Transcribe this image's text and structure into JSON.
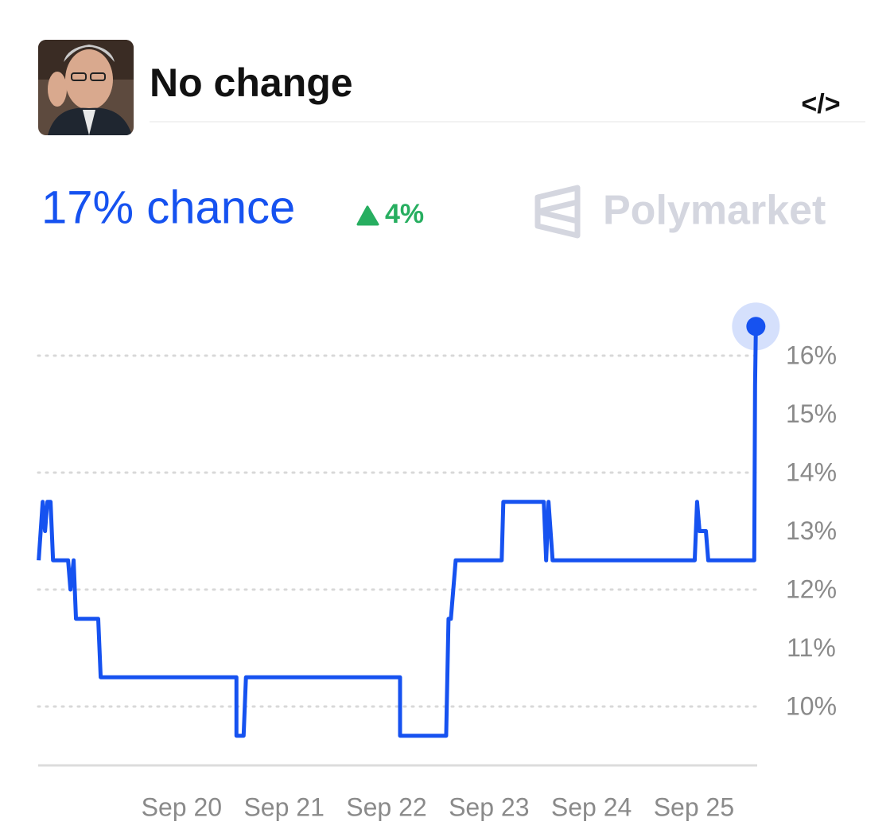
{
  "header": {
    "title": "No change",
    "embed": "</>",
    "chance": "17% chance",
    "change": "4%",
    "brand": "Polymarket"
  },
  "chart_data": {
    "type": "line",
    "x": [
      18.605,
      18.644,
      18.667,
      18.69,
      18.721,
      18.745,
      18.892,
      18.915,
      18.946,
      18.969,
      19.186,
      19.21,
      20.535,
      20.535,
      20.605,
      20.628,
      22.132,
      22.132,
      22.582,
      22.605,
      22.628,
      22.675,
      23.124,
      23.14,
      23.535,
      23.558,
      23.581,
      23.621,
      25.008,
      25.031,
      25.055,
      25.117,
      25.14,
      25.589,
      25.597,
      25.605
    ],
    "series": [
      {
        "color": "#1652f0",
        "values": [
          12.5,
          13.5,
          13,
          13.5,
          13.5,
          12.5,
          12.5,
          12,
          12.5,
          11.5,
          11.5,
          10.5,
          10.5,
          9.5,
          9.5,
          10.5,
          10.5,
          9.5,
          9.5,
          11.5,
          11.5,
          12.5,
          12.5,
          13.5,
          13.5,
          12.5,
          13.5,
          12.5,
          12.5,
          13.5,
          13,
          13,
          12.5,
          12.5,
          15.5,
          16.5
        ]
      }
    ],
    "xlim": [
      18.6,
      25.61
    ],
    "xticks": [
      {
        "value": 20,
        "label": "Sep 20"
      },
      {
        "value": 21,
        "label": "Sep 21"
      },
      {
        "value": 22,
        "label": "Sep 22"
      },
      {
        "value": 23,
        "label": "Sep 23"
      },
      {
        "value": 24,
        "label": "Sep 24"
      },
      {
        "value": 25,
        "label": "Sep 25"
      }
    ],
    "ylim": [
      9,
      17
    ],
    "yticks": [
      {
        "value": 10,
        "label": "10%"
      },
      {
        "value": 11,
        "label": "11%"
      },
      {
        "value": 12,
        "label": "12%"
      },
      {
        "value": 13,
        "label": "13%"
      },
      {
        "value": 14,
        "label": "14%"
      },
      {
        "value": 15,
        "label": "15%"
      },
      {
        "value": 16,
        "label": "16%"
      }
    ],
    "grid": true,
    "grid_every": 2
  }
}
